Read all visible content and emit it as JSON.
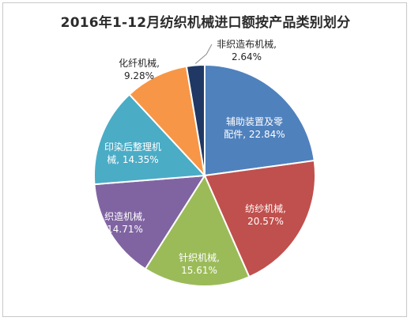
{
  "chart_data": {
    "type": "pie",
    "title": "2016年1-12月纺织机械进口额按产品类别划分",
    "start_angle_deg": 0,
    "direction": "clockwise",
    "slices": [
      {
        "label_lines": [
          "辅助装置及零",
          "配件, 22.84%"
        ],
        "value": 22.84,
        "color": "#4f81bd",
        "label_position": "inside"
      },
      {
        "label_lines": [
          "纺纱机械,",
          "20.57%"
        ],
        "value": 20.57,
        "color": "#c0504d",
        "label_position": "inside"
      },
      {
        "label_lines": [
          "针织机械,",
          "15.61%"
        ],
        "value": 15.61,
        "color": "#9bbb59",
        "label_position": "inside"
      },
      {
        "label_lines": [
          "织造机械,",
          "14.71%"
        ],
        "value": 14.71,
        "color": "#8064a2",
        "label_position": "inside"
      },
      {
        "label_lines": [
          "印染后整理机",
          "械, 14.35%"
        ],
        "value": 14.35,
        "color": "#4bacc6",
        "label_position": "inside"
      },
      {
        "label_lines": [
          "化纤机械,",
          "9.28%"
        ],
        "value": 9.28,
        "color": "#f79646",
        "label_position": "outside"
      },
      {
        "label_lines": [
          "非织造布机械,",
          "2.64%"
        ],
        "value": 2.64,
        "color": "#1f3864",
        "label_position": "outside"
      }
    ]
  }
}
